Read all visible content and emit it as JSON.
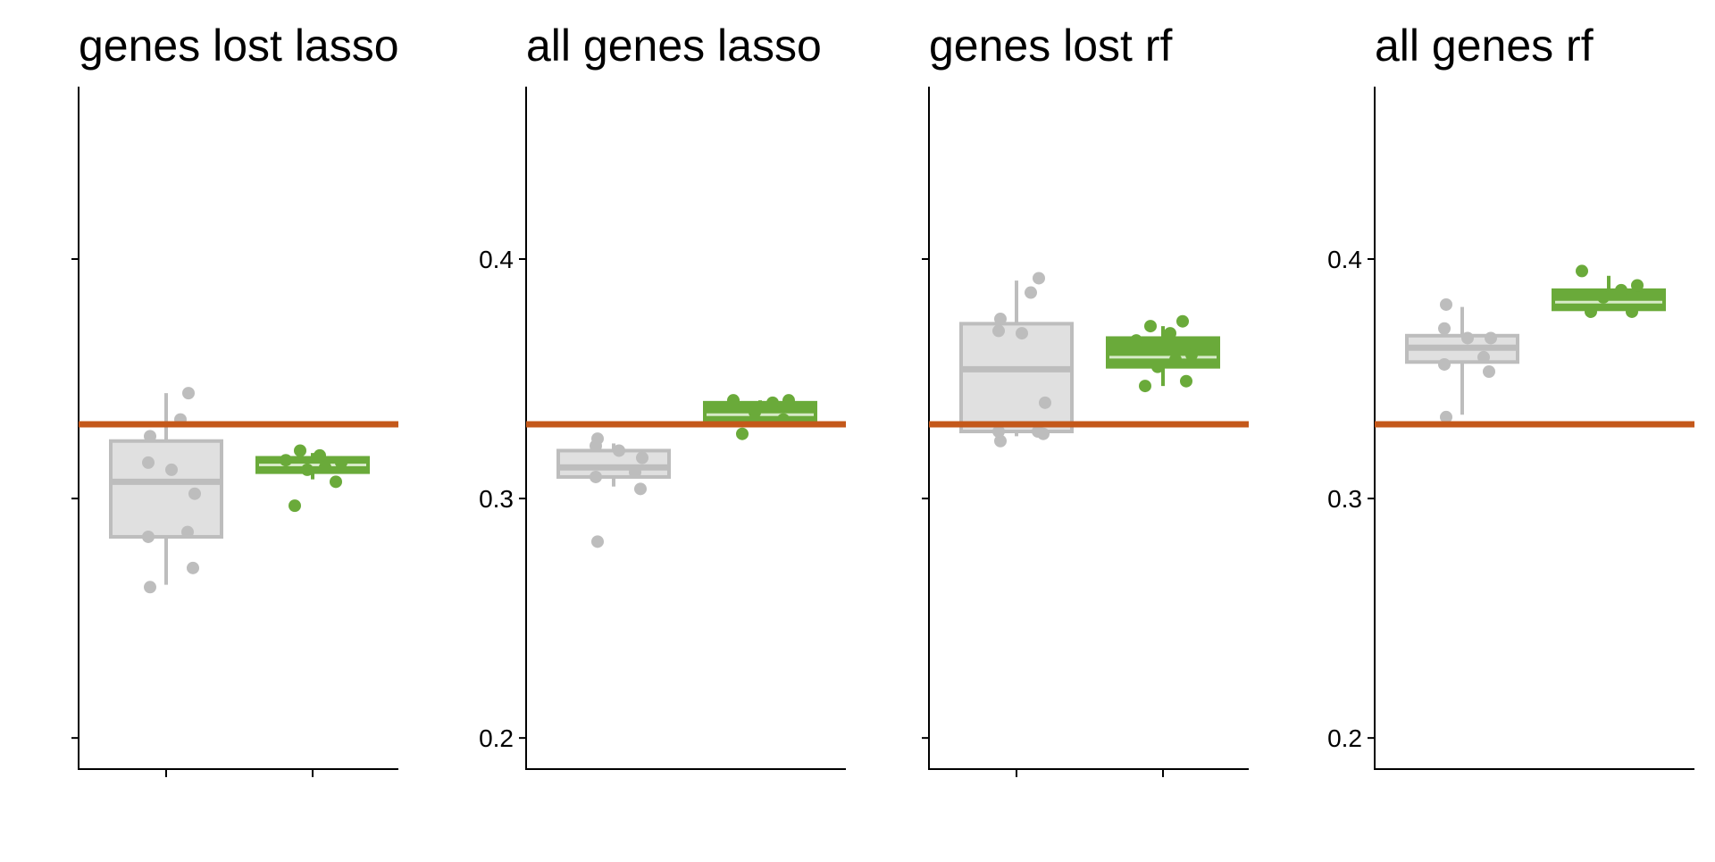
{
  "chart_data": [
    {
      "type": "box",
      "title": "genes lost lasso",
      "ylim": [
        0.187,
        0.472
      ],
      "yticks": [
        0.2,
        0.3,
        0.4
      ],
      "show_tick_labels": false,
      "show_x_ticks": true,
      "reference_line": 0.331,
      "groups": [
        {
          "color": "#bdbdbd",
          "fill": "#e0e0e0",
          "box": {
            "whisker_low": 0.264,
            "q1": 0.284,
            "median": 0.307,
            "q3": 0.324,
            "whisker_high": 0.344
          },
          "points": [
            0.263,
            0.271,
            0.284,
            0.286,
            0.302,
            0.312,
            0.315,
            0.326,
            0.333,
            0.344
          ]
        },
        {
          "color": "#6aaa3a",
          "fill": "#6aaa3a",
          "box": {
            "whisker_low": 0.308,
            "q1": 0.311,
            "median": 0.314,
            "q3": 0.317,
            "whisker_high": 0.319
          },
          "points": [
            0.297,
            0.307,
            0.312,
            0.313,
            0.315,
            0.316,
            0.318,
            0.32
          ]
        }
      ]
    },
    {
      "type": "box",
      "title": "all genes lasso",
      "ylim": [
        0.187,
        0.472
      ],
      "yticks": [
        0.2,
        0.3,
        0.4
      ],
      "tick_labels": [
        "0.2",
        "0.3",
        "0.4"
      ],
      "show_tick_labels": true,
      "show_x_ticks": false,
      "reference_line": 0.331,
      "groups": [
        {
          "color": "#bdbdbd",
          "fill": "#e0e0e0",
          "box": {
            "whisker_low": 0.305,
            "q1": 0.309,
            "median": 0.313,
            "q3": 0.32,
            "whisker_high": 0.323
          },
          "points": [
            0.282,
            0.304,
            0.309,
            0.311,
            0.317,
            0.32,
            0.322,
            0.325
          ]
        },
        {
          "color": "#6aaa3a",
          "fill": "#6aaa3a",
          "box": {
            "whisker_low": 0.33,
            "q1": 0.332,
            "median": 0.335,
            "q3": 0.34,
            "whisker_high": 0.341
          },
          "points": [
            0.327,
            0.333,
            0.336,
            0.34,
            0.341,
            0.341
          ]
        }
      ]
    },
    {
      "type": "box",
      "title": "genes lost rf",
      "ylim": [
        0.187,
        0.472
      ],
      "yticks": [
        0.2,
        0.3,
        0.4
      ],
      "show_tick_labels": false,
      "show_x_ticks": true,
      "reference_line": 0.331,
      "groups": [
        {
          "color": "#bdbdbd",
          "fill": "#e0e0e0",
          "box": {
            "whisker_low": 0.326,
            "q1": 0.328,
            "median": 0.354,
            "q3": 0.373,
            "whisker_high": 0.391
          },
          "points": [
            0.324,
            0.327,
            0.328,
            0.328,
            0.34,
            0.369,
            0.37,
            0.375,
            0.386,
            0.392
          ]
        },
        {
          "color": "#6aaa3a",
          "fill": "#6aaa3a",
          "box": {
            "whisker_low": 0.347,
            "q1": 0.355,
            "median": 0.359,
            "q3": 0.367,
            "whisker_high": 0.372
          },
          "points": [
            0.347,
            0.349,
            0.355,
            0.358,
            0.36,
            0.366,
            0.369,
            0.372,
            0.374
          ]
        }
      ]
    },
    {
      "type": "box",
      "title": "all genes rf",
      "ylim": [
        0.187,
        0.472
      ],
      "yticks": [
        0.2,
        0.3,
        0.4
      ],
      "tick_labels": [
        "0.2",
        "0.3",
        "0.4"
      ],
      "show_tick_labels": true,
      "show_x_ticks": false,
      "reference_line": 0.331,
      "groups": [
        {
          "color": "#bdbdbd",
          "fill": "#e0e0e0",
          "box": {
            "whisker_low": 0.335,
            "q1": 0.357,
            "median": 0.363,
            "q3": 0.368,
            "whisker_high": 0.38
          },
          "points": [
            0.334,
            0.353,
            0.356,
            0.359,
            0.367,
            0.367,
            0.371,
            0.381
          ]
        },
        {
          "color": "#6aaa3a",
          "fill": "#6aaa3a",
          "box": {
            "whisker_low": 0.379,
            "q1": 0.379,
            "median": 0.382,
            "q3": 0.387,
            "whisker_high": 0.393
          },
          "points": [
            0.378,
            0.378,
            0.384,
            0.387,
            0.389,
            0.395
          ]
        }
      ]
    }
  ],
  "colors": {
    "reference_line": "#c4581a",
    "axis": "#000000"
  }
}
